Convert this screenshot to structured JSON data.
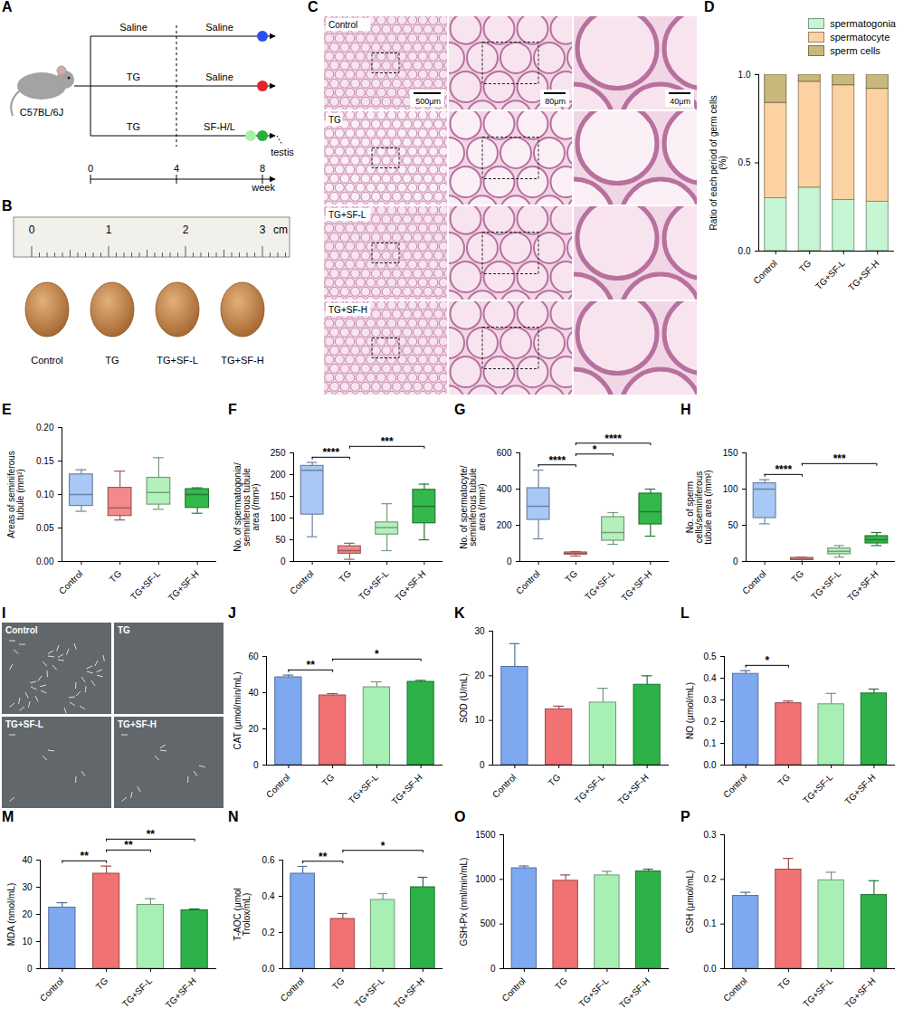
{
  "chart_data": [
    {
      "panel": "D",
      "type": "bar",
      "stacked": true,
      "legend": "top-right",
      "categories": [
        "Control",
        "TG",
        "TG+SF-L",
        "TG+SF-H"
      ],
      "ylabel": "Ratio of each period of germ cells (%)",
      "ylim": [
        0,
        1
      ],
      "yticks": [
        {
          "value": 0,
          "label": "0.0"
        },
        0.5,
        {
          "value": 1,
          "label": "1.0"
        }
      ],
      "series": [
        {
          "name": "spermatogonia",
          "color": "#c6f5d3",
          "values": [
            0.3,
            0.36,
            0.29,
            0.28
          ]
        },
        {
          "name": "spermatocyte",
          "color": "#fcd2a2",
          "values": [
            0.54,
            0.6,
            0.65,
            0.64
          ]
        },
        {
          "name": "sperm cells",
          "color": "#c8b87c",
          "values": [
            0.16,
            0.04,
            0.06,
            0.08
          ]
        }
      ]
    },
    {
      "panel": "E",
      "type": "box",
      "categories": [
        "Control",
        "TG",
        "TG+SF-L",
        "TG+SF-H"
      ],
      "ylabel": "Areas of seminiferous tubule (mm²)",
      "ylim": [
        0,
        0.2
      ],
      "yticks": [
        {
          "value": 0,
          "label": "0.00"
        },
        0.05,
        {
          "value": 0.1,
          "label": "0.10"
        },
        0.15,
        {
          "value": 0.2,
          "label": "0.20"
        }
      ],
      "colors": [
        "#a8c8f5",
        "#f28a8a",
        "#b4f0bc",
        "#34b84c"
      ],
      "min": [
        0.075,
        0.062,
        0.078,
        0.072
      ],
      "q1": [
        0.083,
        0.068,
        0.085,
        0.08
      ],
      "median": [
        0.1,
        0.08,
        0.103,
        0.1
      ],
      "q3": [
        0.13,
        0.11,
        0.125,
        0.108
      ],
      "max": [
        0.137,
        0.135,
        0.155,
        0.11
      ],
      "annotations": []
    },
    {
      "panel": "F",
      "type": "box",
      "categories": [
        "Control",
        "TG",
        "TG+SF-L",
        "TG+SF-H"
      ],
      "ylabel": "No. of spermatogonia/seminiferous tubule area (/mm²)",
      "ylim": [
        0,
        250
      ],
      "yticks": [
        0,
        50,
        100,
        150,
        200,
        250
      ],
      "colors": [
        "#a8c8f5",
        "#f28a8a",
        "#b4f0bc",
        "#34b84c"
      ],
      "min": [
        57,
        5,
        25,
        50
      ],
      "q1": [
        108,
        18,
        62,
        88
      ],
      "median": [
        210,
        25,
        78,
        127
      ],
      "q3": [
        220,
        35,
        90,
        165
      ],
      "max": [
        228,
        42,
        133,
        178
      ],
      "annotations": [
        {
          "from": "Control",
          "to": "TG",
          "label": "****"
        },
        {
          "from": "TG",
          "to": "TG+SF-H",
          "label": "***"
        }
      ]
    },
    {
      "panel": "G",
      "type": "box",
      "categories": [
        "Control",
        "TG",
        "TG+SF-L",
        "TG+SF-H"
      ],
      "ylabel": "No. of spermatocyte/seminiferous tubule area (/mm²)",
      "ylim": [
        0,
        600
      ],
      "yticks": [
        0,
        200,
        400,
        600
      ],
      "colors": [
        "#a8c8f5",
        "#f28a8a",
        "#b4f0bc",
        "#34b84c"
      ],
      "min": [
        125,
        30,
        95,
        140
      ],
      "q1": [
        230,
        38,
        115,
        205
      ],
      "median": [
        305,
        45,
        160,
        275
      ],
      "q3": [
        405,
        50,
        245,
        375
      ],
      "max": [
        505,
        55,
        270,
        400
      ],
      "annotations": [
        {
          "from": "Control",
          "to": "TG",
          "label": "****"
        },
        {
          "from": "TG",
          "to": "TG+SF-L",
          "label": "*"
        },
        {
          "from": "TG",
          "to": "TG+SF-H",
          "label": "****"
        }
      ]
    },
    {
      "panel": "H",
      "type": "box",
      "categories": [
        "Control",
        "TG",
        "TG+SF-L",
        "TG+SF-H"
      ],
      "ylabel": "No. of sperm cells/seminiferous tubule area (/mm²)",
      "ylim": [
        0,
        150
      ],
      "yticks": [
        0,
        50,
        100,
        150
      ],
      "colors": [
        "#a8c8f5",
        "#f28a8a",
        "#b4f0bc",
        "#34b84c"
      ],
      "min": [
        52,
        0,
        6,
        22
      ],
      "q1": [
        60,
        2,
        10,
        25
      ],
      "median": [
        100,
        3,
        14,
        30
      ],
      "q3": [
        108,
        5,
        18,
        35
      ],
      "max": [
        113,
        6,
        22,
        40
      ],
      "annotations": [
        {
          "from": "Control",
          "to": "TG",
          "label": "****"
        },
        {
          "from": "TG",
          "to": "TG+SF-H",
          "label": "***"
        }
      ]
    },
    {
      "panel": "J",
      "type": "bar",
      "categories": [
        "Control",
        "TG",
        "TG+SF-L",
        "TG+SF-H"
      ],
      "ylabel": "CAT (μmol/min/mL)",
      "ylim": [
        0,
        60
      ],
      "yticks": [
        0,
        20,
        40,
        60
      ],
      "colors": [
        "#7ea9f0",
        "#f07272",
        "#a8efb4",
        "#2cb248"
      ],
      "values": [
        48.5,
        38.5,
        43,
        46
      ],
      "errors": [
        1.2,
        1.0,
        3.0,
        0.8
      ],
      "annotations": [
        {
          "from": "Control",
          "to": "TG",
          "label": "**"
        },
        {
          "from": "TG",
          "to": "TG+SF-H",
          "label": "*"
        }
      ]
    },
    {
      "panel": "K",
      "type": "bar",
      "categories": [
        "Control",
        "TG",
        "TG+SF-L",
        "TG+SF-H"
      ],
      "ylabel": "SOD (U/mL)",
      "ylim": [
        0,
        30
      ],
      "yticks": [
        0,
        10,
        20,
        30
      ],
      "colors": [
        "#7ea9f0",
        "#f07272",
        "#a8efb4",
        "#2cb248"
      ],
      "values": [
        22,
        12.5,
        14,
        18
      ],
      "errors": [
        5.2,
        0.7,
        3.2,
        2.0
      ],
      "annotations": []
    },
    {
      "panel": "L",
      "type": "bar",
      "categories": [
        "Control",
        "TG",
        "TG+SF-L",
        "TG+SF-H"
      ],
      "ylabel": "NO (μmol/mL)",
      "ylim": [
        0,
        0.5
      ],
      "yticks": [
        {
          "value": 0,
          "label": "0.0"
        },
        0.1,
        0.2,
        0.3,
        0.4,
        0.5
      ],
      "colors": [
        "#7ea9f0",
        "#f07272",
        "#a8efb4",
        "#2cb248"
      ],
      "values": [
        0.42,
        0.285,
        0.28,
        0.33
      ],
      "errors": [
        0.015,
        0.01,
        0.05,
        0.02
      ],
      "annotations": [
        {
          "from": "Control",
          "to": "TG",
          "label": "*"
        }
      ]
    },
    {
      "panel": "M",
      "type": "bar",
      "categories": [
        "Control",
        "TG",
        "TG+SF-L",
        "TG+SF-H"
      ],
      "ylabel": "MDA (nmol/mL)",
      "ylim": [
        0,
        40
      ],
      "yticks": [
        0,
        10,
        20,
        30,
        40
      ],
      "colors": [
        "#7ea9f0",
        "#f07272",
        "#a8efb4",
        "#2cb248"
      ],
      "values": [
        22.5,
        35,
        23.5,
        21.5
      ],
      "errors": [
        1.8,
        2.8,
        2.3,
        0.5
      ],
      "annotations": [
        {
          "from": "Control",
          "to": "TG",
          "label": "**"
        },
        {
          "from": "TG",
          "to": "TG+SF-L",
          "label": "**"
        },
        {
          "from": "TG",
          "to": "TG+SF-H",
          "label": "**"
        }
      ]
    },
    {
      "panel": "N",
      "type": "bar",
      "categories": [
        "Control",
        "TG",
        "TG+SF-L",
        "TG+SF-H"
      ],
      "ylabel": "T-AOC (μmol Trolox/mL)",
      "ylim": [
        0,
        0.6
      ],
      "yticks": [
        {
          "value": 0,
          "label": "0.0"
        },
        0.2,
        0.4,
        0.6
      ],
      "colors": [
        "#7ea9f0",
        "#f07272",
        "#a8efb4",
        "#2cb248"
      ],
      "values": [
        0.525,
        0.275,
        0.38,
        0.45
      ],
      "errors": [
        0.04,
        0.03,
        0.035,
        0.055
      ],
      "annotations": [
        {
          "from": "Control",
          "to": "TG",
          "label": "**"
        },
        {
          "from": "TG",
          "to": "TG+SF-H",
          "label": "*"
        }
      ]
    },
    {
      "panel": "O",
      "type": "bar",
      "categories": [
        "Control",
        "TG",
        "TG+SF-L",
        "TG+SF-H"
      ],
      "ylabel": "GSH-Px (nml/min/mL)",
      "ylim": [
        0,
        1500
      ],
      "yticks": [
        0,
        500,
        1000,
        1500
      ],
      "colors": [
        "#7ea9f0",
        "#f07272",
        "#a8efb4",
        "#2cb248"
      ],
      "values": [
        1125,
        985,
        1045,
        1090
      ],
      "errors": [
        25,
        65,
        45,
        25
      ],
      "annotations": []
    },
    {
      "panel": "P",
      "type": "bar",
      "categories": [
        "Control",
        "TG",
        "TG+SF-L",
        "TG+SF-H"
      ],
      "ylabel": "GSH (μmol/mL)",
      "ylim": [
        0,
        0.3
      ],
      "yticks": [
        {
          "value": 0,
          "label": "0.0"
        },
        0.1,
        0.2,
        0.3
      ],
      "colors": [
        "#7ea9f0",
        "#f07272",
        "#a8efb4",
        "#2cb248"
      ],
      "values": [
        0.163,
        0.222,
        0.198,
        0.165
      ],
      "errors": [
        0.008,
        0.025,
        0.018,
        0.032
      ],
      "annotations": []
    }
  ],
  "diagrams": {
    "A": {
      "panel": "A",
      "strain": "C57BL/6J",
      "groups": [
        [
          "Saline",
          "Saline"
        ],
        [
          "TG",
          "Saline"
        ],
        [
          "TG",
          "SF-H/L"
        ]
      ],
      "group_colors": [
        [
          "#2b4ff0"
        ],
        [
          "#e8202a"
        ],
        [
          "#a8f0a8",
          "#26b03a"
        ]
      ],
      "endpoint": "testis",
      "timeline": {
        "label": "week",
        "ticks": [
          0,
          4,
          8
        ]
      }
    },
    "B": {
      "panel": "B",
      "ruler": {
        "ticks": [
          0,
          1,
          2,
          3
        ],
        "unit": "cm"
      },
      "labels": [
        "Control",
        "TG",
        "TG+SF-L",
        "TG+SF-H"
      ]
    },
    "C": {
      "panel": "C",
      "rows": [
        "Control",
        "TG",
        "TG+SF-L",
        "TG+SF-H"
      ],
      "scale_bars": [
        "500μm",
        "80μm",
        "40μm"
      ]
    },
    "I": {
      "panel": "I",
      "labels": [
        "Control",
        "TG",
        "TG+SF-L",
        "TG+SF-H"
      ]
    }
  }
}
